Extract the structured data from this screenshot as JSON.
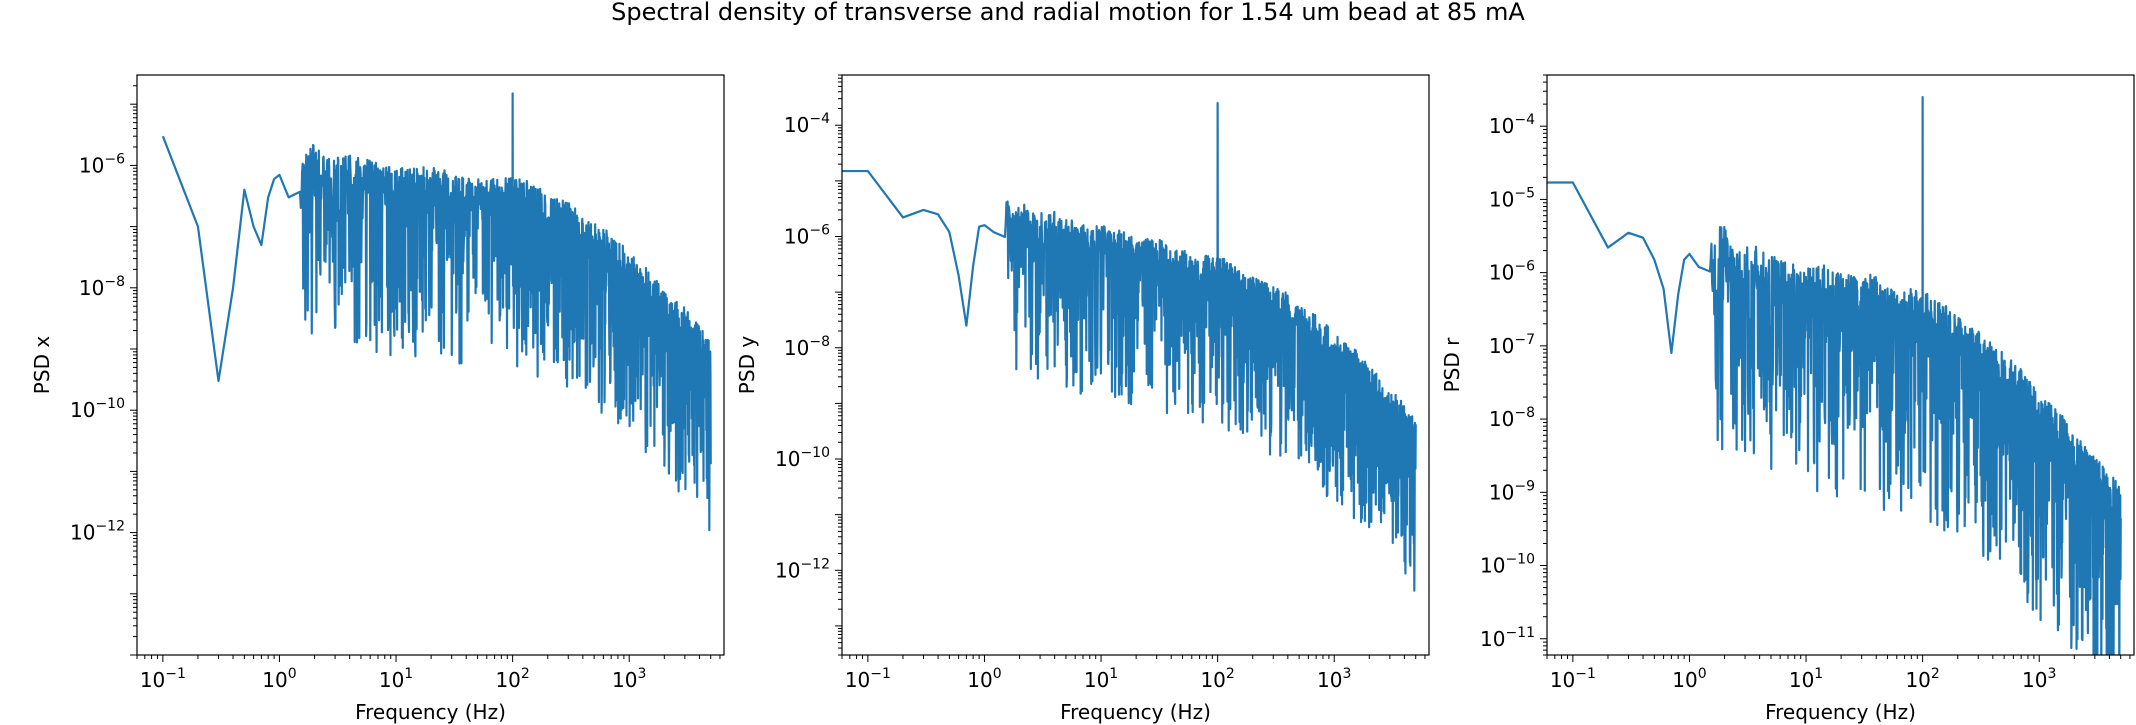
{
  "figure": {
    "suptitle": "Spectral density of transverse and radial motion for 1.54 um bead at 85 mA"
  },
  "chart_data": [
    {
      "type": "line",
      "title": "",
      "xlabel": "Frequency (Hz)",
      "ylabel": "PSD x",
      "xscale": "log",
      "yscale": "log",
      "xlim": [
        0.06,
        6500
      ],
      "ylim": [
        1e-14,
        3e-05
      ],
      "xticks": [
        0.1,
        1,
        10,
        100,
        1000
      ],
      "xtick_labels": [
        [
          "10",
          "−1"
        ],
        [
          "10",
          "0"
        ],
        [
          "10",
          "1"
        ],
        [
          "10",
          "2"
        ],
        [
          "10",
          "3"
        ]
      ],
      "yticks": [
        1e-12,
        1e-10,
        1e-08,
        1e-06
      ],
      "ytick_labels": [
        [
          "10",
          "−12"
        ],
        [
          "10",
          "−10"
        ],
        [
          "10",
          "−8"
        ],
        [
          "10",
          "−6"
        ]
      ],
      "grid": false,
      "color": "#1f77b4",
      "series": [
        {
          "x": [
            0.1,
            0.2,
            0.3,
            0.4,
            0.5,
            0.6,
            0.7,
            0.8,
            0.9,
            1.0,
            1.2,
            1.5,
            2,
            2.5,
            3,
            4,
            5,
            6,
            8,
            10,
            15,
            20,
            30,
            40,
            50,
            60,
            70,
            80,
            90,
            100,
            120,
            150,
            200,
            300,
            400,
            500,
            700,
            1000,
            1500,
            2000,
            3000,
            4000,
            5000
          ],
          "y": [
            3e-06,
            1e-07,
            3e-10,
            1e-08,
            4e-07,
            1e-07,
            5e-08,
            3e-07,
            6e-07,
            7e-07,
            3e-07,
            6e-07,
            7e-07,
            4e-07,
            5e-07,
            5e-07,
            4e-07,
            4e-07,
            3e-07,
            3e-07,
            3e-07,
            3e-07,
            2.5e-07,
            2e-07,
            2e-07,
            2e-07,
            2e-07,
            2e-07,
            2e-07,
            2e-07,
            2e-07,
            1.5e-07,
            1.2e-07,
            8e-08,
            5e-08,
            4e-08,
            2.5e-08,
            1.2e-08,
            6e-09,
            3e-09,
            1.5e-09,
            8e-10,
            4e-10
          ],
          "spikes": [
            [
              100,
              1.5e-05
            ]
          ]
        }
      ]
    },
    {
      "type": "line",
      "title": "",
      "xlabel": "Frequency (Hz)",
      "ylabel": "PSD y",
      "xscale": "log",
      "yscale": "log",
      "xlim": [
        0.06,
        6500
      ],
      "ylim": [
        3e-14,
        0.0008
      ],
      "xticks": [
        0.1,
        1,
        10,
        100,
        1000
      ],
      "xtick_labels": [
        [
          "10",
          "−1"
        ],
        [
          "10",
          "0"
        ],
        [
          "10",
          "1"
        ],
        [
          "10",
          "2"
        ],
        [
          "10",
          "3"
        ]
      ],
      "yticks": [
        1e-12,
        1e-10,
        1e-08,
        1e-06,
        0.0001
      ],
      "ytick_labels": [
        [
          "10",
          "−12"
        ],
        [
          "10",
          "−10"
        ],
        [
          "10",
          "−8"
        ],
        [
          "10",
          "−6"
        ],
        [
          "10",
          "−4"
        ]
      ],
      "grid": false,
      "color": "#1f77b4",
      "series": [
        {
          "x": [
            0.06,
            0.1,
            0.2,
            0.3,
            0.4,
            0.5,
            0.6,
            0.7,
            0.8,
            0.9,
            1.0,
            1.2,
            1.5,
            2,
            2.5,
            3,
            4,
            5,
            6,
            8,
            10,
            15,
            20,
            30,
            40,
            50,
            60,
            70,
            80,
            90,
            100,
            120,
            150,
            200,
            300,
            400,
            500,
            700,
            1000,
            1500,
            2000,
            3000,
            4000,
            5000
          ],
          "y": [
            1.5e-05,
            1.5e-05,
            2.2e-06,
            3e-06,
            2.5e-06,
            1.2e-06,
            2e-07,
            2.5e-08,
            3e-07,
            1.5e-06,
            1.6e-06,
            1.2e-06,
            1.5e-06,
            1.6e-06,
            8e-07,
            9e-07,
            1e-06,
            8e-07,
            6e-07,
            5e-07,
            5e-07,
            4e-07,
            3e-07,
            3e-07,
            2e-07,
            2e-07,
            1.5e-07,
            1.5e-07,
            1.5e-07,
            1.5e-07,
            1.5e-07,
            1.2e-07,
            8e-08,
            6e-08,
            4e-08,
            3e-08,
            2e-08,
            1.2e-08,
            6e-09,
            3e-09,
            1.5e-09,
            6e-10,
            3e-10,
            1.5e-10
          ],
          "spikes": [
            [
              100,
              0.00025
            ]
          ]
        }
      ]
    },
    {
      "type": "line",
      "title": "",
      "xlabel": "Frequency (Hz)",
      "ylabel": "PSD r",
      "xscale": "log",
      "yscale": "log",
      "xlim": [
        0.06,
        6500
      ],
      "ylim": [
        6e-12,
        0.0005
      ],
      "xticks": [
        0.1,
        1,
        10,
        100,
        1000
      ],
      "xtick_labels": [
        [
          "10",
          "−1"
        ],
        [
          "10",
          "0"
        ],
        [
          "10",
          "1"
        ],
        [
          "10",
          "2"
        ],
        [
          "10",
          "3"
        ]
      ],
      "yticks": [
        1e-11,
        1e-10,
        1e-09,
        1e-08,
        1e-07,
        1e-06,
        1e-05,
        0.0001
      ],
      "ytick_labels": [
        [
          "10",
          "−11"
        ],
        [
          "10",
          "−10"
        ],
        [
          "10",
          "−9"
        ],
        [
          "10",
          "−8"
        ],
        [
          "10",
          "−7"
        ],
        [
          "10",
          "−6"
        ],
        [
          "10",
          "−5"
        ],
        [
          "10",
          "−4"
        ]
      ],
      "grid": false,
      "color": "#1f77b4",
      "series": [
        {
          "x": [
            0.06,
            0.1,
            0.2,
            0.3,
            0.4,
            0.5,
            0.6,
            0.7,
            0.8,
            0.9,
            1.0,
            1.2,
            1.5,
            2,
            2.5,
            3,
            4,
            5,
            6,
            8,
            10,
            15,
            20,
            30,
            40,
            50,
            60,
            70,
            80,
            90,
            100,
            120,
            150,
            200,
            300,
            400,
            500,
            700,
            1000,
            1500,
            2000,
            3000,
            4000,
            5000
          ],
          "y": [
            1.7e-05,
            1.7e-05,
            2.2e-06,
            3.5e-06,
            3e-06,
            1.5e-06,
            6e-07,
            8e-08,
            5e-07,
            1.5e-06,
            1.8e-06,
            1.2e-06,
            1.5e-06,
            1.4e-06,
            6e-07,
            8e-07,
            7e-07,
            6e-07,
            5e-07,
            4e-07,
            4e-07,
            4e-07,
            3e-07,
            3e-07,
            3e-07,
            2e-07,
            2e-07,
            2e-07,
            2e-07,
            2e-07,
            2e-07,
            1.5e-07,
            1.2e-07,
            8e-08,
            5e-08,
            3.5e-08,
            2.5e-08,
            1.5e-08,
            7e-09,
            4e-09,
            2e-09,
            1e-09,
            6e-10,
            4e-10
          ],
          "spikes": [
            [
              100,
              0.00025
            ]
          ]
        }
      ]
    }
  ]
}
